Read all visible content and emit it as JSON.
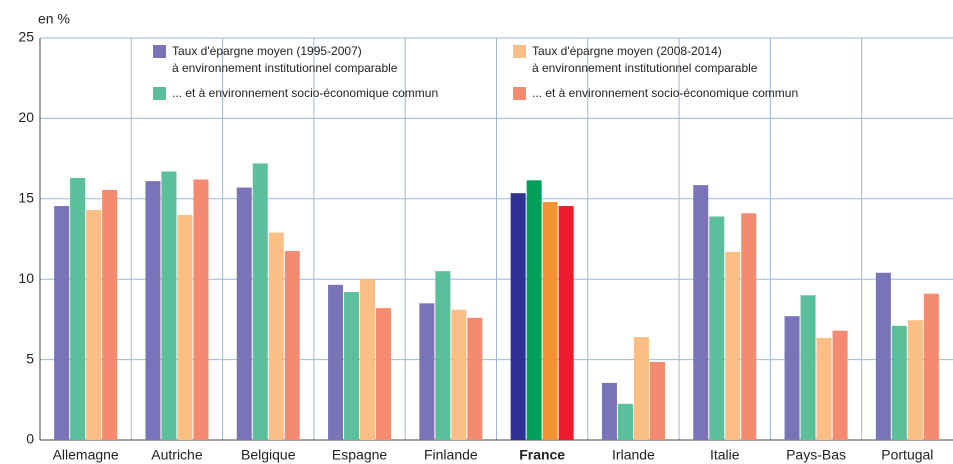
{
  "chart_data": {
    "type": "bar",
    "y_unit": "en %",
    "categories": [
      "Allemagne",
      "Autriche",
      "Belgique",
      "Espagne",
      "Finlande",
      "France",
      "Irlande",
      "Italie",
      "Pays-Bas",
      "Portugal"
    ],
    "highlight_category_index": 5,
    "series": [
      {
        "name": "Taux d'épargne moyen (1995-2007)\nà environnement institutionnel comparable",
        "color": "#7b73b8",
        "highlight_color": "#2e3192",
        "values": [
          14.55,
          16.1,
          15.7,
          9.65,
          8.5,
          15.35,
          3.55,
          15.85,
          7.7,
          10.4
        ]
      },
      {
        "name": "... et à environnement socio-économique commun",
        "color": "#5cbf9c",
        "highlight_color": "#00a05a",
        "values": [
          16.3,
          16.7,
          17.2,
          9.2,
          10.5,
          16.15,
          2.25,
          13.9,
          9.0,
          7.1
        ]
      },
      {
        "name": "Taux d'épargne moyen (2008-2014)\nà environnement institutionnel comparable",
        "color": "#fbbf85",
        "highlight_color": "#f39233",
        "values": [
          14.3,
          14.0,
          12.9,
          10.0,
          8.1,
          14.8,
          6.4,
          11.7,
          6.35,
          7.45
        ]
      },
      {
        "name": "... et à environnement socio-économique commun",
        "color": "#f48a6f",
        "highlight_color": "#ee1c2e",
        "values": [
          15.55,
          16.2,
          11.75,
          8.2,
          7.6,
          14.55,
          4.85,
          14.1,
          6.8,
          9.1
        ]
      }
    ],
    "ylim": [
      0,
      25
    ],
    "yticks": [
      0,
      5,
      10,
      15,
      20,
      25
    ],
    "grid": true
  }
}
